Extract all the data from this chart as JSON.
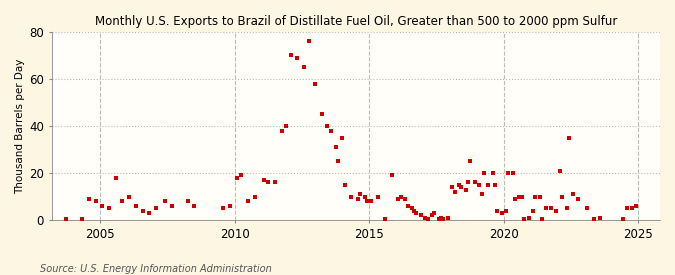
{
  "title": "Monthly U.S. Exports to Brazil of Distillate Fuel Oil, Greater than 500 to 2000 ppm Sulfur",
  "ylabel": "Thousand Barrels per Day",
  "source": "Source: U.S. Energy Information Administration",
  "background_color": "#fdf6e3",
  "plot_bg_color": "#fffef8",
  "dot_color": "#cc0000",
  "grid_color": "#bbbbbb",
  "ylim": [
    0,
    80
  ],
  "yticks": [
    0,
    20,
    40,
    60,
    80
  ],
  "xlim": [
    2003.2,
    2025.8
  ],
  "xticks": [
    2005,
    2010,
    2015,
    2020,
    2025
  ],
  "data_points": [
    [
      2003.75,
      0.3
    ],
    [
      2004.33,
      0.5
    ],
    [
      2004.58,
      9.0
    ],
    [
      2004.83,
      8.0
    ],
    [
      2005.08,
      6.0
    ],
    [
      2005.33,
      5.0
    ],
    [
      2005.58,
      18.0
    ],
    [
      2005.83,
      8.0
    ],
    [
      2006.08,
      10.0
    ],
    [
      2006.33,
      6.0
    ],
    [
      2006.58,
      4.0
    ],
    [
      2006.83,
      3.0
    ],
    [
      2007.08,
      5.0
    ],
    [
      2007.42,
      8.0
    ],
    [
      2007.67,
      6.0
    ],
    [
      2008.25,
      8.0
    ],
    [
      2008.5,
      6.0
    ],
    [
      2009.58,
      5.0
    ],
    [
      2009.83,
      6.0
    ],
    [
      2010.08,
      18.0
    ],
    [
      2010.25,
      19.0
    ],
    [
      2010.5,
      8.0
    ],
    [
      2010.75,
      10.0
    ],
    [
      2011.08,
      17.0
    ],
    [
      2011.25,
      16.0
    ],
    [
      2011.5,
      16.0
    ],
    [
      2011.75,
      38.0
    ],
    [
      2011.92,
      40.0
    ],
    [
      2012.08,
      70.0
    ],
    [
      2012.33,
      69.0
    ],
    [
      2012.58,
      65.0
    ],
    [
      2012.75,
      76.0
    ],
    [
      2013.0,
      58.0
    ],
    [
      2013.25,
      45.0
    ],
    [
      2013.42,
      40.0
    ],
    [
      2013.58,
      38.0
    ],
    [
      2013.75,
      31.0
    ],
    [
      2013.83,
      25.0
    ],
    [
      2014.0,
      35.0
    ],
    [
      2014.08,
      15.0
    ],
    [
      2014.33,
      10.0
    ],
    [
      2014.58,
      9.0
    ],
    [
      2014.67,
      11.0
    ],
    [
      2014.83,
      10.0
    ],
    [
      2014.92,
      8.0
    ],
    [
      2015.08,
      8.0
    ],
    [
      2015.33,
      10.0
    ],
    [
      2015.58,
      0.5
    ],
    [
      2015.83,
      19.0
    ],
    [
      2016.08,
      9.0
    ],
    [
      2016.17,
      10.0
    ],
    [
      2016.33,
      9.0
    ],
    [
      2016.42,
      6.0
    ],
    [
      2016.58,
      5.0
    ],
    [
      2016.67,
      4.0
    ],
    [
      2016.75,
      3.0
    ],
    [
      2016.92,
      2.0
    ],
    [
      2017.08,
      1.0
    ],
    [
      2017.17,
      0.3
    ],
    [
      2017.33,
      2.0
    ],
    [
      2017.42,
      3.0
    ],
    [
      2017.58,
      0.5
    ],
    [
      2017.67,
      1.0
    ],
    [
      2017.75,
      0.3
    ],
    [
      2017.92,
      1.0
    ],
    [
      2018.08,
      14.0
    ],
    [
      2018.17,
      12.0
    ],
    [
      2018.33,
      15.0
    ],
    [
      2018.42,
      14.0
    ],
    [
      2018.58,
      13.0
    ],
    [
      2018.67,
      16.0
    ],
    [
      2018.75,
      25.0
    ],
    [
      2018.92,
      16.0
    ],
    [
      2019.08,
      15.0
    ],
    [
      2019.17,
      11.0
    ],
    [
      2019.25,
      20.0
    ],
    [
      2019.42,
      15.0
    ],
    [
      2019.58,
      20.0
    ],
    [
      2019.67,
      15.0
    ],
    [
      2019.75,
      4.0
    ],
    [
      2019.92,
      3.0
    ],
    [
      2020.08,
      4.0
    ],
    [
      2020.17,
      20.0
    ],
    [
      2020.33,
      20.0
    ],
    [
      2020.42,
      9.0
    ],
    [
      2020.58,
      10.0
    ],
    [
      2020.67,
      10.0
    ],
    [
      2020.75,
      0.5
    ],
    [
      2020.92,
      1.0
    ],
    [
      2021.08,
      4.0
    ],
    [
      2021.17,
      10.0
    ],
    [
      2021.33,
      10.0
    ],
    [
      2021.42,
      0.3
    ],
    [
      2021.58,
      5.0
    ],
    [
      2021.75,
      5.0
    ],
    [
      2021.92,
      4.0
    ],
    [
      2022.08,
      21.0
    ],
    [
      2022.17,
      10.0
    ],
    [
      2022.33,
      5.0
    ],
    [
      2022.42,
      35.0
    ],
    [
      2022.58,
      11.0
    ],
    [
      2022.75,
      9.0
    ],
    [
      2023.08,
      5.0
    ],
    [
      2023.33,
      0.5
    ],
    [
      2023.58,
      1.0
    ],
    [
      2024.42,
      0.5
    ],
    [
      2024.58,
      5.0
    ],
    [
      2024.75,
      5.0
    ],
    [
      2024.92,
      6.0
    ]
  ]
}
